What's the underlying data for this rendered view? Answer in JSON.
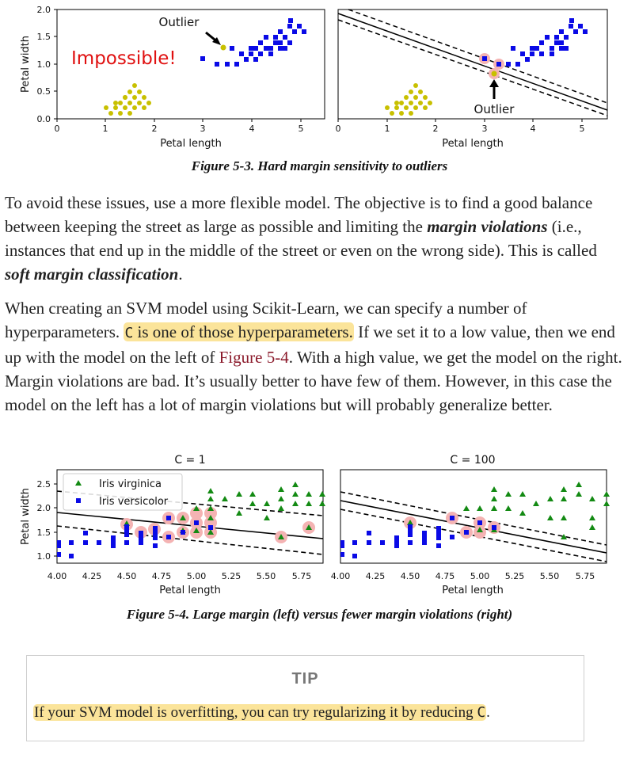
{
  "figure3": {
    "caption": "Figure 5-3. Hard margin sensitivity to outliers",
    "left_annotation_impossible": "Impossible!",
    "left_annotation_outlier": "Outlier",
    "right_annotation_outlier": "Outlier",
    "ylabel": "Petal width",
    "xlabel": "Petal length",
    "yticks": [
      "0.0",
      "0.5",
      "1.0",
      "1.5",
      "2.0"
    ],
    "xticks": [
      "0",
      "1",
      "2",
      "3",
      "4",
      "5"
    ]
  },
  "paragraph1": {
    "t1": "To avoid these issues, use a more flexible model. The objective is to find a good balance between keeping the street as large as possible and limiting the ",
    "b1": "margin violations",
    "t2": " (i.e., instances that end up in the middle of the street or even on the wrong side). This is called ",
    "b2": "soft margin classification",
    "t3": "."
  },
  "paragraph2": {
    "t1": "When creating an SVM model using Scikit-Learn, we can specify a number of hyperparameters. ",
    "hl_code": "C",
    "hl_text": " is one of those hyperparameters.",
    "t2": " If we set it to a low value, then we end up with the model on the left of ",
    "link": "Figure 5-4",
    "t3": ". With a high value, we get the model on the right. Margin violations are bad. It’s usually better to have few of them. However, in this case the model on the left has a lot of margin violations but will probably generalize better."
  },
  "figure4": {
    "caption": "Figure 5-4. Large margin (left) versus fewer margin violations (right)",
    "left_title": "C = 1",
    "right_title": "C = 100",
    "legend_virginica": "Iris virginica",
    "legend_versicolor": "Iris versicolor",
    "ylabel": "Petal width",
    "xlabel": "Petal length",
    "yticks": [
      "1.0",
      "1.5",
      "2.0",
      "2.5"
    ],
    "xticks": [
      "4.00",
      "4.25",
      "4.50",
      "4.75",
      "5.00",
      "5.25",
      "5.50",
      "5.75"
    ]
  },
  "tip": {
    "title": "TIP",
    "text": "If your SVM model is overfitting, you can try regularizing it by reducing ",
    "code": "C",
    "end": "."
  },
  "colors": {
    "setosa": "#c8c000",
    "versicolor": "#0a0ae6",
    "virginica": "#138a13",
    "highlight": "#fbe49a",
    "link": "#8b1a2b",
    "impossible": "#e01010"
  }
}
